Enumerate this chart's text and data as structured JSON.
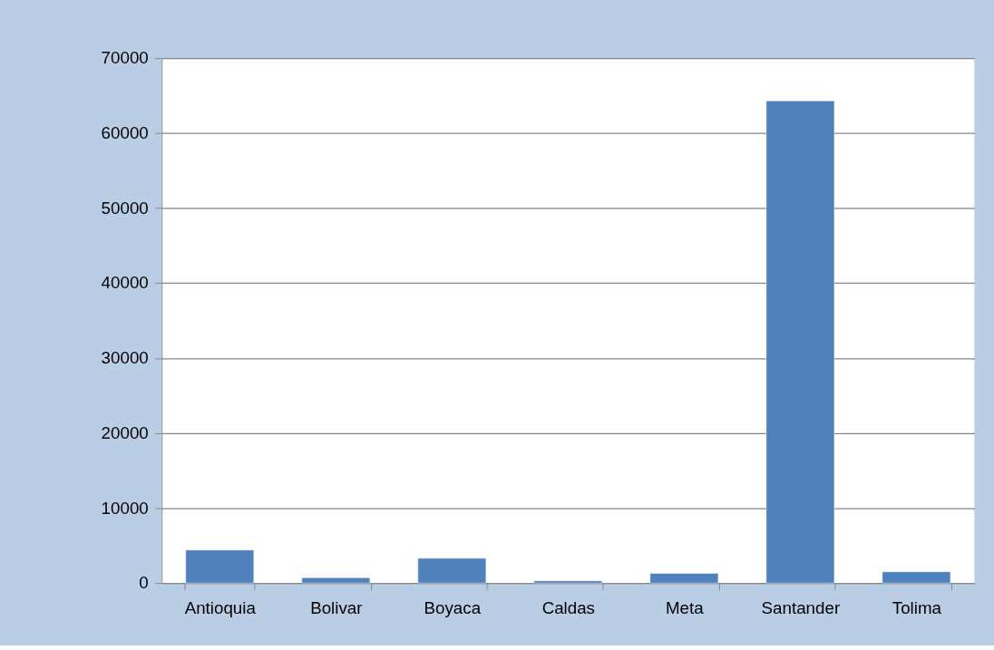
{
  "chart_data": {
    "type": "bar",
    "categories": [
      "Antioquia",
      "Bolivar",
      "Boyaca",
      "Caldas",
      "Meta",
      "Santander",
      "Tolima"
    ],
    "values": [
      4400,
      700,
      3300,
      300,
      1300,
      64300,
      1500
    ],
    "color": "#4f81bd",
    "ylim": [
      0,
      70000
    ],
    "yticks": [
      0,
      10000,
      20000,
      30000,
      40000,
      50000,
      60000,
      70000
    ],
    "grid": "y"
  }
}
